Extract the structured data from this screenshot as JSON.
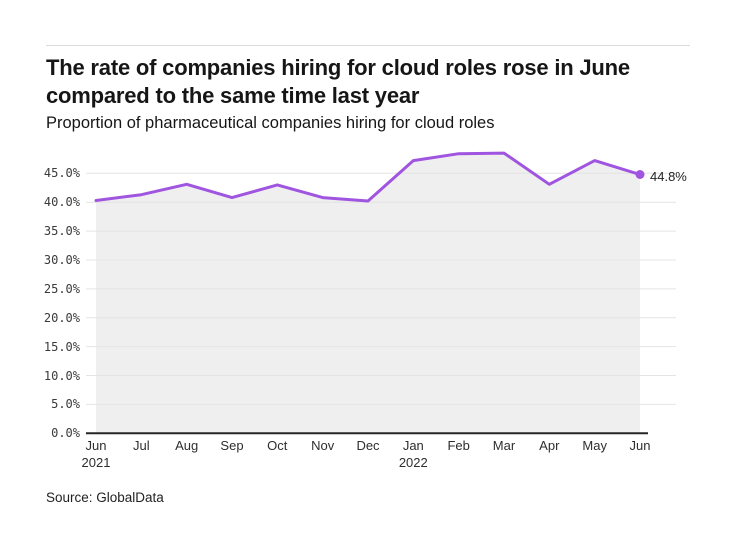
{
  "header": {
    "title_line1": "The rate of companies hiring for cloud roles rose in June",
    "title_line2": "compared to the same time last year",
    "subtitle": "Proportion of pharmaceutical companies hiring for cloud roles"
  },
  "footer": {
    "source": "Source: GlobalData"
  },
  "chart_data": {
    "type": "line",
    "title": "The rate of companies hiring for cloud roles rose in June compared to the same time last year",
    "subtitle": "Proportion of pharmaceutical companies hiring for cloud roles",
    "categories": [
      "Jun",
      "Jul",
      "Aug",
      "Sep",
      "Oct",
      "Nov",
      "Dec",
      "Jan",
      "Feb",
      "Mar",
      "Apr",
      "May",
      "Jun"
    ],
    "year_labels": {
      "0": "2021",
      "7": "2022"
    },
    "values": [
      40.3,
      41.3,
      43.1,
      40.8,
      43.0,
      40.8,
      40.2,
      47.2,
      48.4,
      48.5,
      43.1,
      47.2,
      44.8
    ],
    "end_label": "44.8%",
    "y_ticks": [
      "0.0%",
      "5.0%",
      "10.0%",
      "15.0%",
      "20.0%",
      "25.0%",
      "30.0%",
      "35.0%",
      "40.0%",
      "45.0%"
    ],
    "y_tick_values": [
      0,
      5,
      10,
      15,
      20,
      25,
      30,
      35,
      40,
      45
    ],
    "ylim": [
      0,
      50
    ],
    "grid_on": true,
    "legend": "none",
    "line_color": "#a055e0",
    "area_color": "#efefef",
    "grid_color": "#e4e4e4",
    "axis_color": "#262626"
  }
}
